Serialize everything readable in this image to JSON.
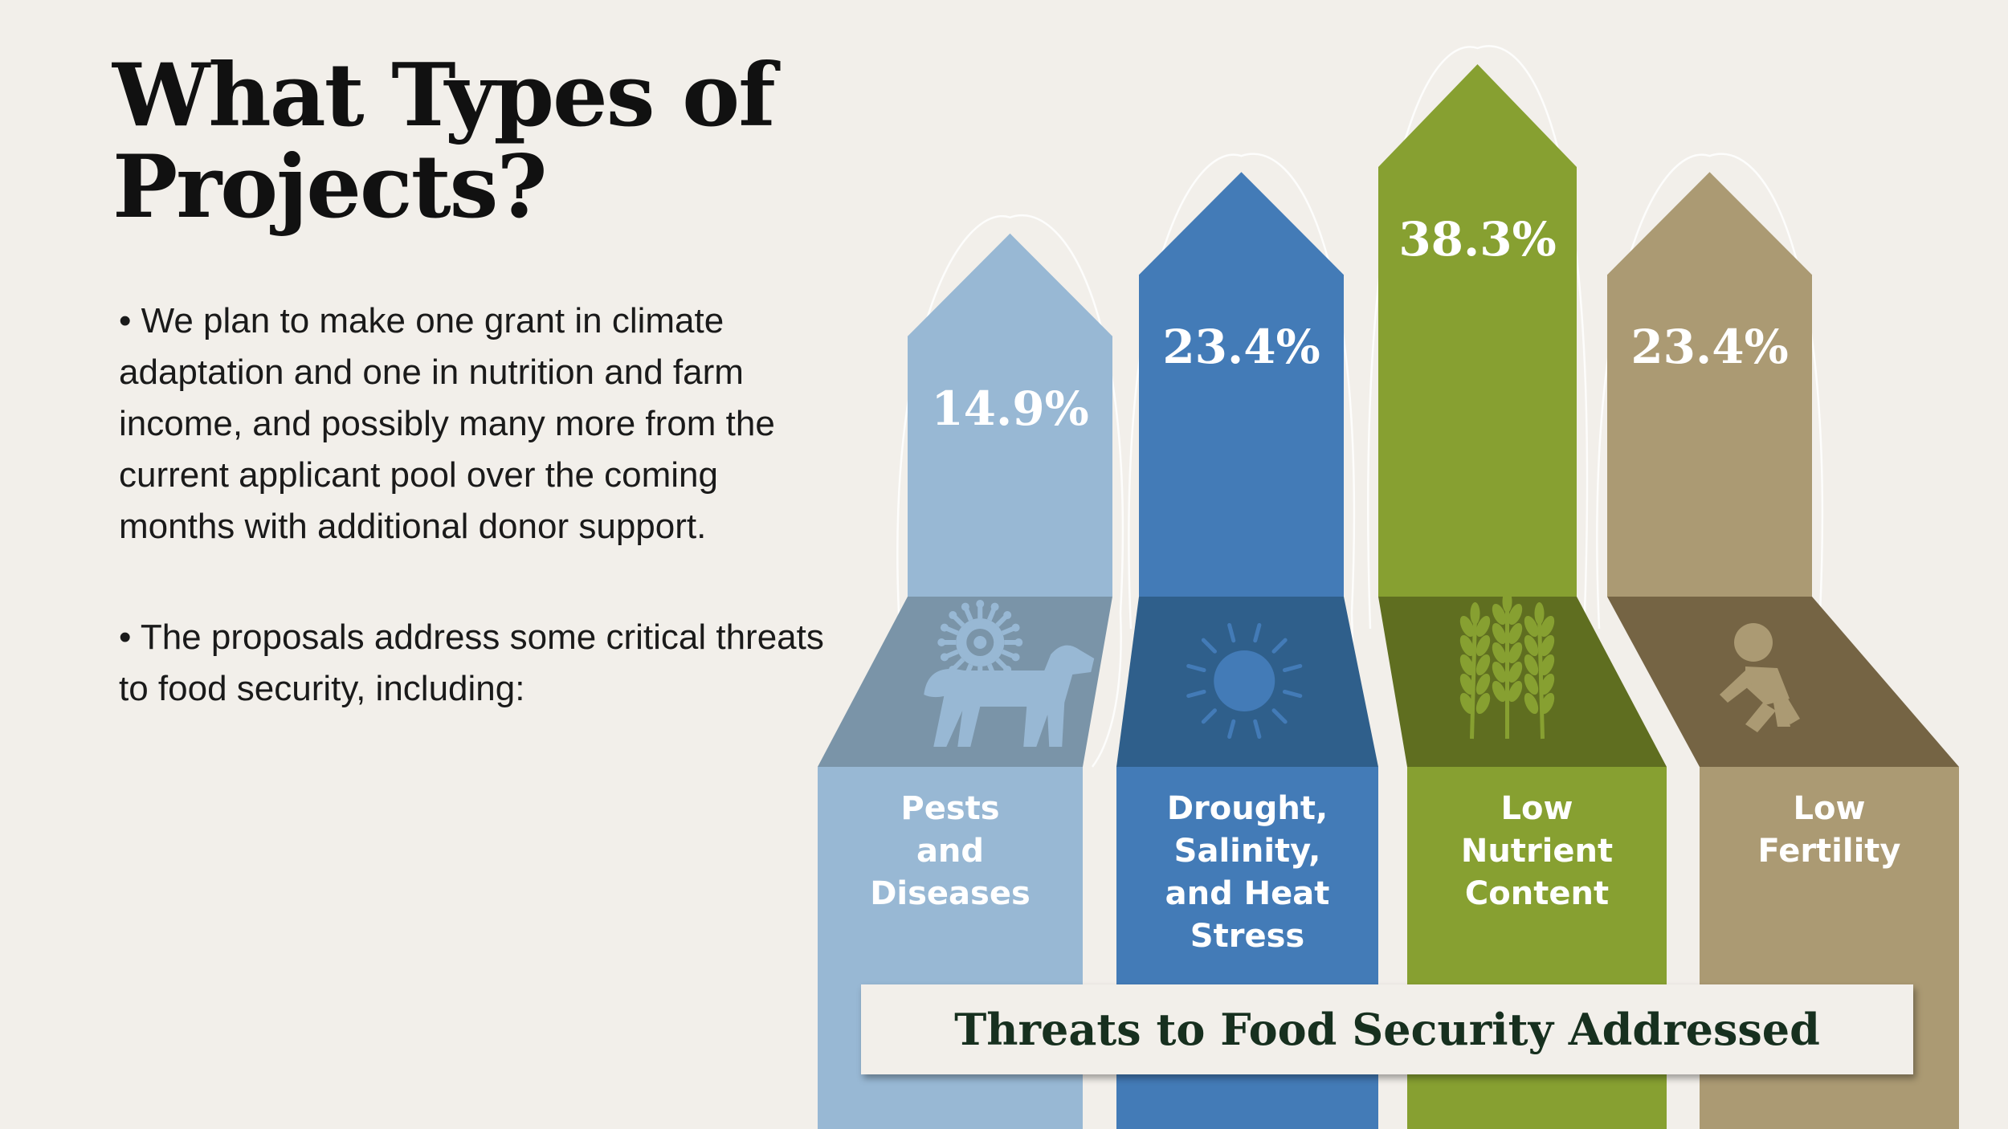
{
  "title": {
    "line1": "What Types of",
    "line2": "Projects?"
  },
  "bullets": [
    "• We plan to make one grant in climate adaptation and one in nutrition and farm income, and possibly many more from the current applicant pool over the coming months with additional donor support.",
    "• The proposals address some critical threats to food security, including:"
  ],
  "chart_data": {
    "type": "bar",
    "title": "Threats to Food Security Addressed",
    "unit": "%",
    "categories": [
      [
        "Pests",
        "and",
        "Diseases"
      ],
      [
        "Drought,",
        "Salinity,",
        "and Heat",
        "Stress"
      ],
      [
        "Low",
        "Nutrient",
        "Content"
      ],
      [
        "Low",
        "Fertility"
      ]
    ],
    "values": [
      14.9,
      23.4,
      38.3,
      23.4
    ],
    "value_labels": [
      "14.9%",
      "23.4%",
      "38.3%",
      "23.4%"
    ],
    "icons": [
      "virus-and-dog-icon",
      "sun-icon",
      "wheat-icon",
      "crawling-baby-icon"
    ],
    "colors": [
      {
        "top": "#98b8d4",
        "mid": "#7a94a8",
        "bottom": "#98b8d4"
      },
      {
        "top": "#437bb7",
        "mid": "#2f5f8b",
        "bottom": "#437bb7"
      },
      {
        "top": "#87a031",
        "mid": "#5f6e20",
        "bottom": "#87a031"
      },
      {
        "top": "#ab9a73",
        "mid": "#756444",
        "bottom": "#ab9a73"
      }
    ],
    "icon_colors": [
      "#98b8d4",
      "#437bb7",
      "#87a031",
      "#ab9a73"
    ]
  }
}
